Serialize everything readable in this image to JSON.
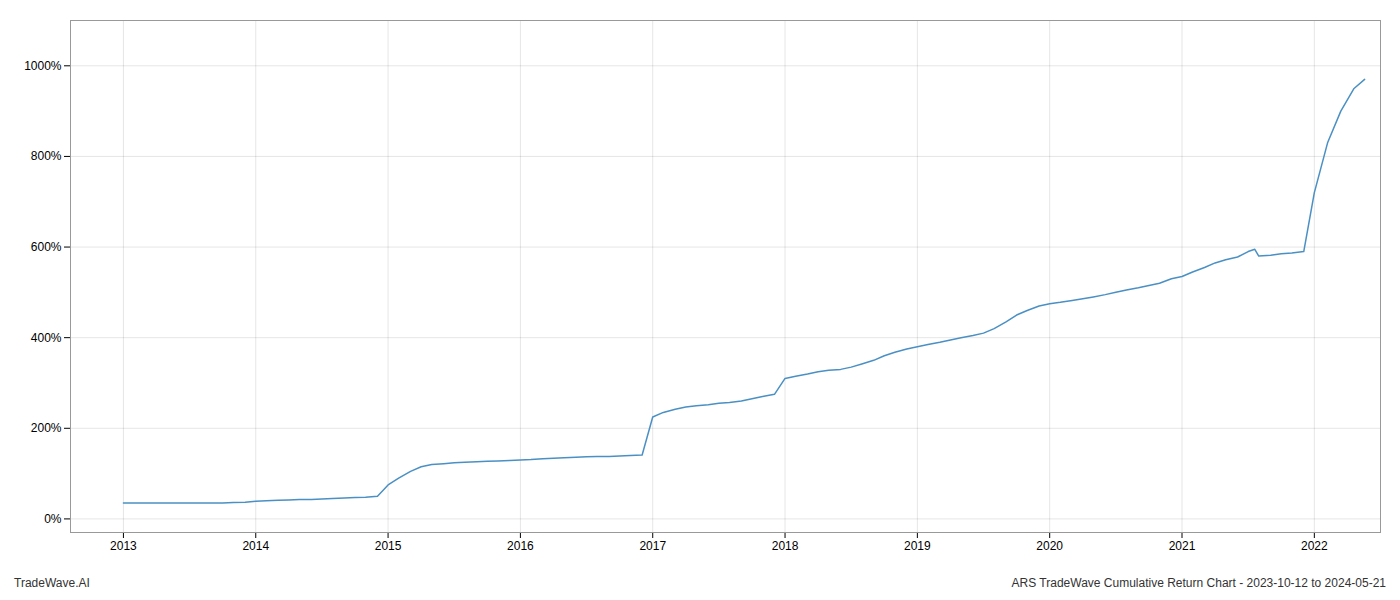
{
  "chart_data": {
    "type": "line",
    "x": [
      2013.0,
      2013.08,
      2013.17,
      2013.25,
      2013.33,
      2013.42,
      2013.5,
      2013.58,
      2013.67,
      2013.75,
      2013.83,
      2013.92,
      2014.0,
      2014.08,
      2014.17,
      2014.25,
      2014.33,
      2014.42,
      2014.5,
      2014.58,
      2014.67,
      2014.75,
      2014.83,
      2014.92,
      2015.0,
      2015.08,
      2015.17,
      2015.25,
      2015.33,
      2015.42,
      2015.5,
      2015.58,
      2015.67,
      2015.75,
      2015.83,
      2015.92,
      2016.0,
      2016.08,
      2016.17,
      2016.25,
      2016.33,
      2016.42,
      2016.5,
      2016.58,
      2016.67,
      2016.75,
      2016.83,
      2016.92,
      2017.0,
      2017.08,
      2017.17,
      2017.25,
      2017.33,
      2017.42,
      2017.5,
      2017.58,
      2017.67,
      2017.75,
      2017.83,
      2017.92,
      2018.0,
      2018.08,
      2018.17,
      2018.25,
      2018.33,
      2018.42,
      2018.5,
      2018.58,
      2018.67,
      2018.75,
      2018.83,
      2018.92,
      2019.0,
      2019.08,
      2019.17,
      2019.25,
      2019.33,
      2019.42,
      2019.5,
      2019.58,
      2019.67,
      2019.75,
      2019.83,
      2019.92,
      2020.0,
      2020.08,
      2020.17,
      2020.25,
      2020.33,
      2020.42,
      2020.5,
      2020.58,
      2020.67,
      2020.75,
      2020.83,
      2020.92,
      2021.0,
      2021.08,
      2021.17,
      2021.25,
      2021.33,
      2021.42,
      2021.5,
      2021.55,
      2021.58,
      2021.67,
      2021.75,
      2021.83,
      2021.92,
      2022.0,
      2022.1,
      2022.2,
      2022.3,
      2022.38
    ],
    "values": [
      0.35,
      0.35,
      0.35,
      0.35,
      0.35,
      0.35,
      0.35,
      0.35,
      0.35,
      0.35,
      0.36,
      0.37,
      0.39,
      0.4,
      0.41,
      0.42,
      0.43,
      0.43,
      0.44,
      0.45,
      0.46,
      0.47,
      0.48,
      0.5,
      0.75,
      0.9,
      1.05,
      1.15,
      1.2,
      1.22,
      1.24,
      1.25,
      1.26,
      1.27,
      1.28,
      1.29,
      1.3,
      1.31,
      1.33,
      1.34,
      1.35,
      1.36,
      1.37,
      1.38,
      1.38,
      1.39,
      1.4,
      1.41,
      2.25,
      2.35,
      2.42,
      2.47,
      2.5,
      2.52,
      2.55,
      2.57,
      2.6,
      2.65,
      2.7,
      2.75,
      3.1,
      3.15,
      3.2,
      3.25,
      3.28,
      3.3,
      3.35,
      3.42,
      3.5,
      3.6,
      3.68,
      3.75,
      3.8,
      3.85,
      3.9,
      3.95,
      4.0,
      4.05,
      4.1,
      4.2,
      4.35,
      4.5,
      4.6,
      4.7,
      4.75,
      4.78,
      4.82,
      4.86,
      4.9,
      4.95,
      5.0,
      5.05,
      5.1,
      5.15,
      5.2,
      5.3,
      5.35,
      5.45,
      5.55,
      5.65,
      5.72,
      5.78,
      5.9,
      5.95,
      5.8,
      5.82,
      5.85,
      5.87,
      5.9,
      7.2,
      8.3,
      9.0,
      9.5,
      9.7
    ],
    "color": "#4a90c4",
    "xlim": [
      2012.6,
      2022.5
    ],
    "ylim": [
      -0.3,
      11.0
    ],
    "xticks": [
      2013,
      2014,
      2015,
      2016,
      2017,
      2018,
      2019,
      2020,
      2021,
      2022
    ],
    "yticks": [
      {
        "value": 0,
        "label": "0%"
      },
      {
        "value": 2,
        "label": "200%"
      },
      {
        "value": 4,
        "label": "400%"
      },
      {
        "value": 6,
        "label": "600%"
      },
      {
        "value": 8,
        "label": "800%"
      },
      {
        "value": 10,
        "label": "1000%"
      }
    ],
    "grid": true,
    "annotations": [
      "TradeWave.AI",
      "ARS TradeWave Cumulative Return Chart - 2023-10-12 to 2024-05-21"
    ]
  }
}
